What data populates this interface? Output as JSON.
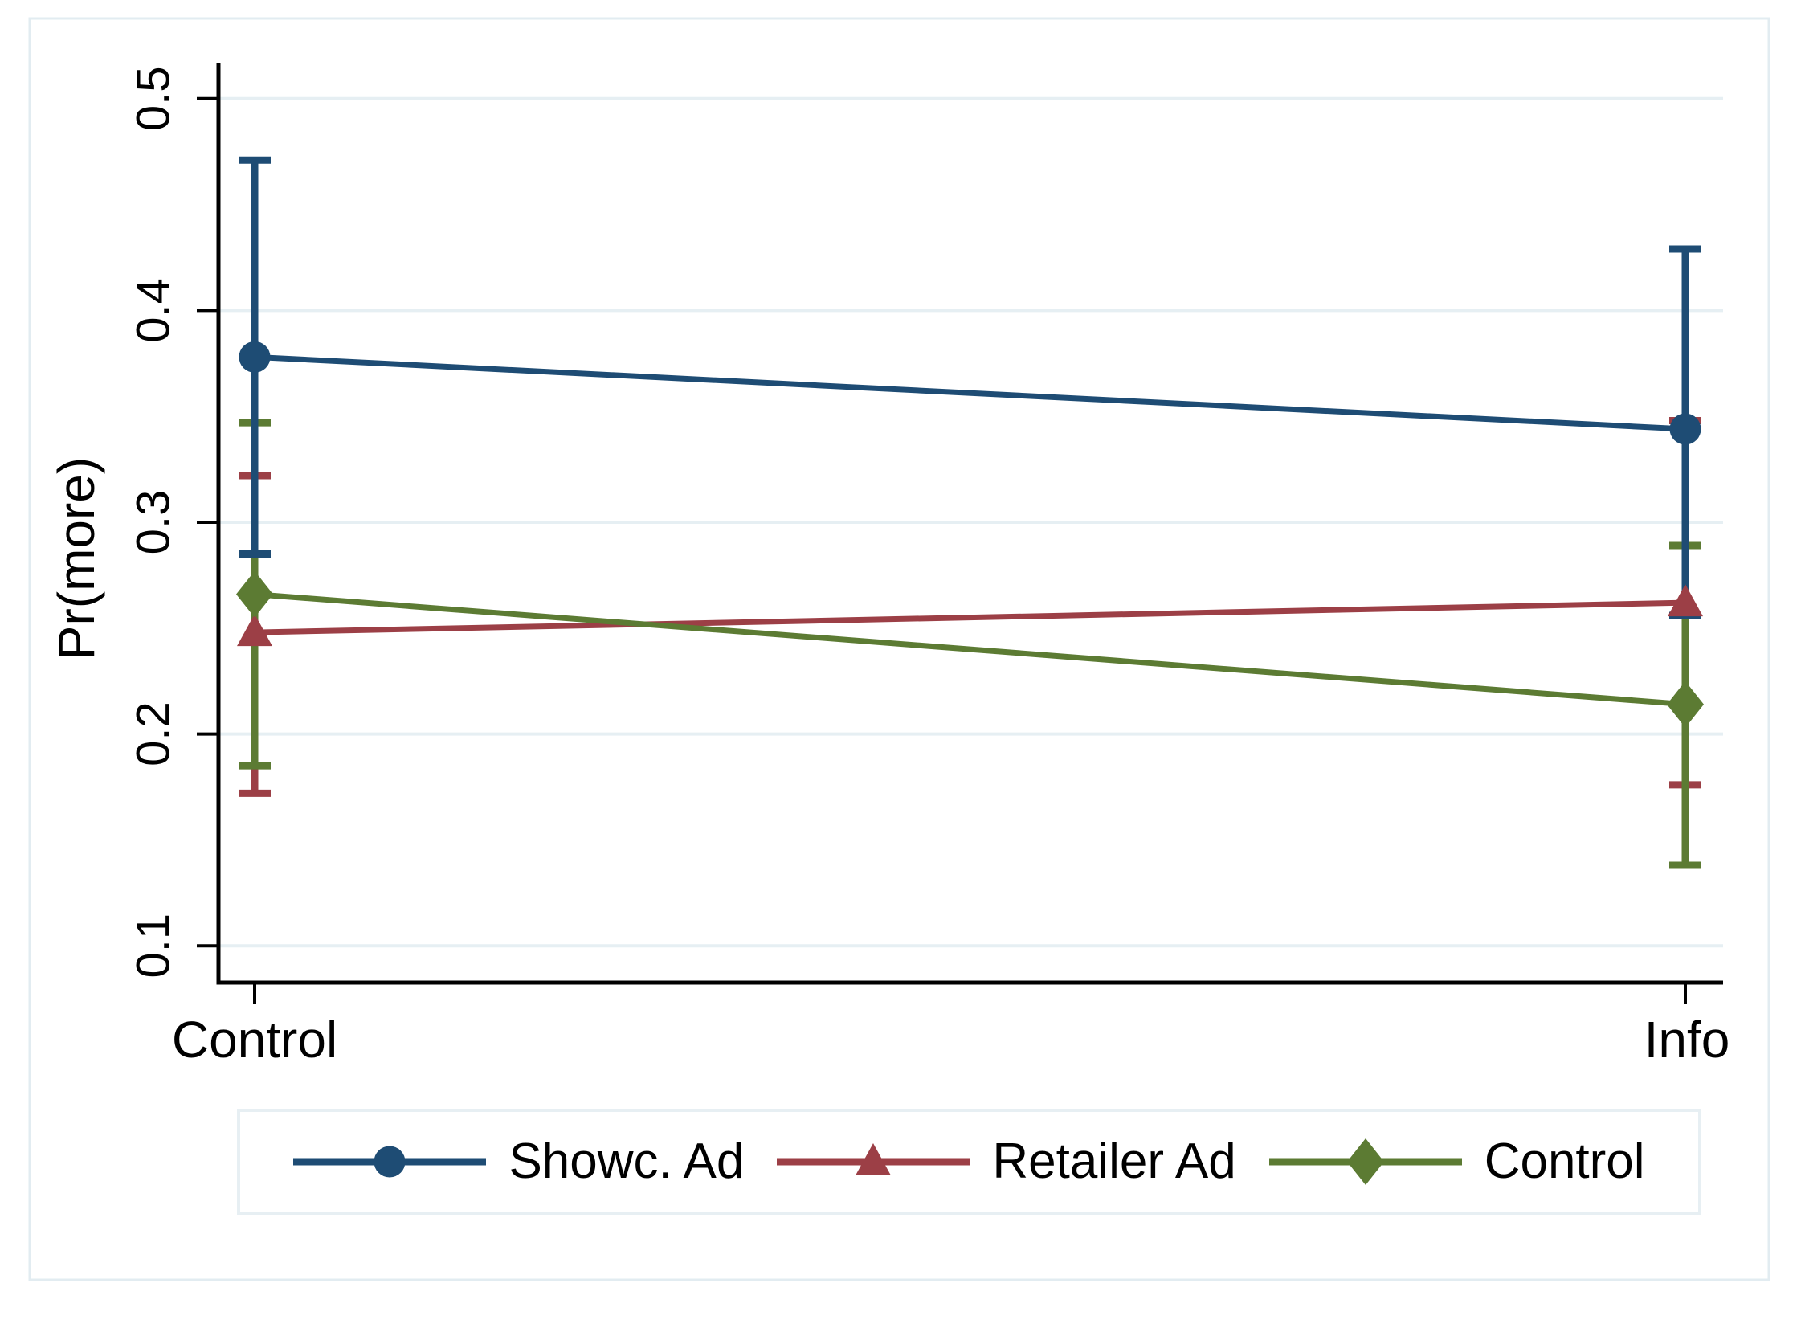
{
  "figure": {
    "background": "#ffffff",
    "border_color": "#e2ecf1"
  },
  "chart_data": {
    "type": "line",
    "title": "",
    "xlabel": "",
    "ylabel": "Pr(more)",
    "categories": [
      "Control",
      "Info"
    ],
    "yticks": [
      "0.1",
      "0.2",
      "0.3",
      "0.4",
      "0.5"
    ],
    "ylim": [
      0.083,
      0.517
    ],
    "grid": "horizontal-gridlines",
    "gridline_color": "#e6eff3",
    "axis_color": "#000000",
    "legend_position": "bottom",
    "error_bars": "95% CI caps",
    "series": [
      {
        "name": "Showc. Ad",
        "marker": "circle",
        "color": "#1e4c74",
        "values": [
          0.378,
          0.344
        ],
        "ci_low": [
          0.285,
          0.256
        ],
        "ci_high": [
          0.471,
          0.429
        ]
      },
      {
        "name": "Retailer Ad",
        "marker": "triangle",
        "color": "#9c3f46",
        "values": [
          0.248,
          0.262
        ],
        "ci_low": [
          0.172,
          0.176
        ],
        "ci_high": [
          0.322,
          0.348
        ]
      },
      {
        "name": "Control",
        "marker": "diamond",
        "color": "#5c7b33",
        "values": [
          0.266,
          0.214
        ],
        "ci_low": [
          0.185,
          0.138
        ],
        "ci_high": [
          0.347,
          0.289
        ]
      }
    ]
  }
}
